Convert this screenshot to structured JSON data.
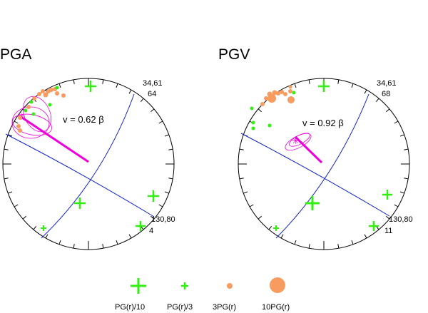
{
  "colors": {
    "green": "#33ee11",
    "orange": "#f79b5f",
    "magenta": "#ee00dd",
    "blue": "#1122cc",
    "black": "#000000"
  },
  "panels": [
    {
      "title": "PGA",
      "label_top_value": "34,61",
      "label_top_num": "64",
      "label_bot_value": "130,80",
      "label_bot_num": "4",
      "velocity": "v = 0.62 β"
    },
    {
      "title": "PGV",
      "label_top_value": "34,61",
      "label_top_num": "68",
      "label_bot_value": "130,80",
      "label_bot_num": "11",
      "velocity": "v = 0.92 β"
    }
  ],
  "legend": [
    {
      "label": "PG(r)/10",
      "symbol": "cross-large"
    },
    {
      "label": "PG(r)/3",
      "symbol": "cross-small"
    },
    {
      "label": "3PG(r)",
      "symbol": "dot-small"
    },
    {
      "label": "10PG(r)",
      "symbol": "dot-large"
    }
  ]
}
